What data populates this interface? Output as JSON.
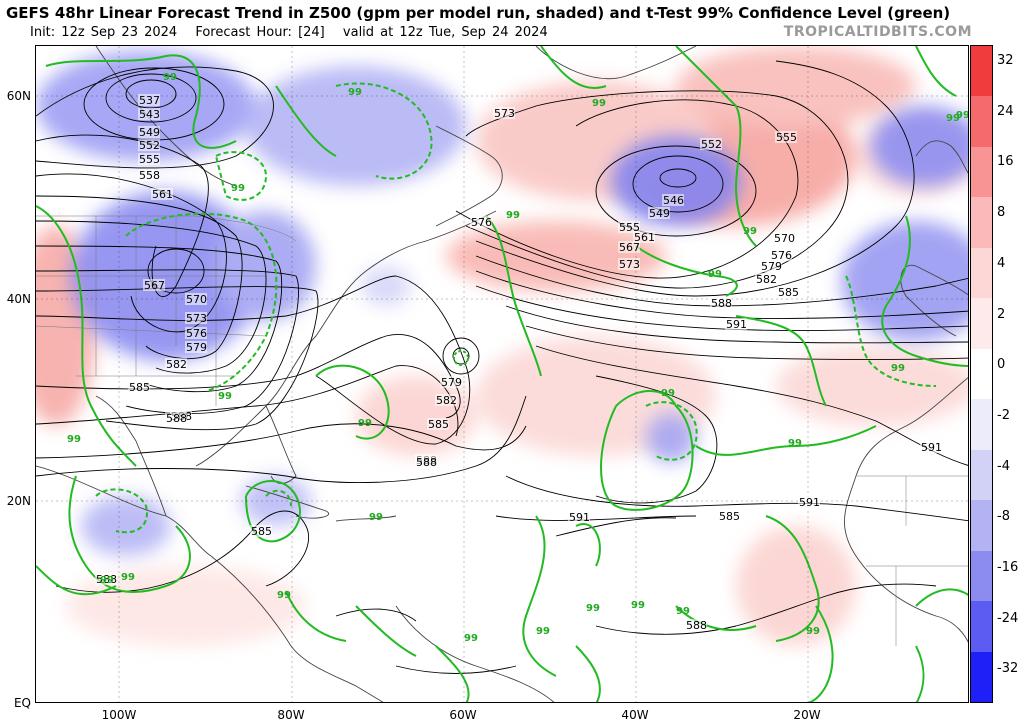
{
  "header": {
    "title": "GEFS 48hr Linear Forecast Trend in Z500 (gpm per model run, shaded) and t-Test 99% Confidence Level (green)",
    "init": "Init: 12z Sep 23 2024",
    "forecast_hour": "Forecast Hour: [24]",
    "valid": "valid at 12z Tue, Sep 24 2024",
    "brand": "TROPICALTIDBITS.COM"
  },
  "axes": {
    "lat_labels": [
      "60N",
      "40N",
      "20N",
      "EQ"
    ],
    "lon_labels": [
      "100W",
      "80W",
      "60W",
      "40W",
      "20W"
    ]
  },
  "colorbar": {
    "labels": [
      "32",
      "24",
      "16",
      "8",
      "4",
      "2",
      "0",
      "-2",
      "-4",
      "-8",
      "-16",
      "-24",
      "-32"
    ],
    "colors": [
      "#f03c3c",
      "#f56a6a",
      "#f89494",
      "#fbb9b9",
      "#fdd6d6",
      "#feeaea",
      "#ffffff",
      "#ececfb",
      "#d2d2f7",
      "#b3b3f3",
      "#8c8cf0",
      "#5c5cf2",
      "#1f1ff8"
    ]
  },
  "colors": {
    "warm_shade": "#f8aaa6",
    "cool_shade": "#8f8ff3",
    "confidence": "#22bb22",
    "contour": "#000000",
    "coast": "#444444"
  },
  "contour_labels": [
    "537",
    "543",
    "549",
    "552",
    "555",
    "558",
    "561",
    "567",
    "570",
    "573",
    "576",
    "579",
    "582",
    "585",
    "588",
    "573",
    "576",
    "579",
    "582",
    "585",
    "588",
    "552",
    "555",
    "546",
    "549",
    "555",
    "561",
    "567",
    "573",
    "570",
    "576",
    "579",
    "582",
    "585",
    "588",
    "591",
    "591",
    "591",
    "591",
    "585",
    "585",
    "588",
    "588",
    "588",
    "588"
  ],
  "confidence_labels": [
    "99",
    "99",
    "99",
    "99",
    "99",
    "99",
    "99",
    "99",
    "99",
    "99",
    "99",
    "99",
    "99",
    "99",
    "99",
    "99",
    "99",
    "99",
    "99",
    "99",
    "99",
    "99",
    "99",
    "99",
    "99"
  ]
}
